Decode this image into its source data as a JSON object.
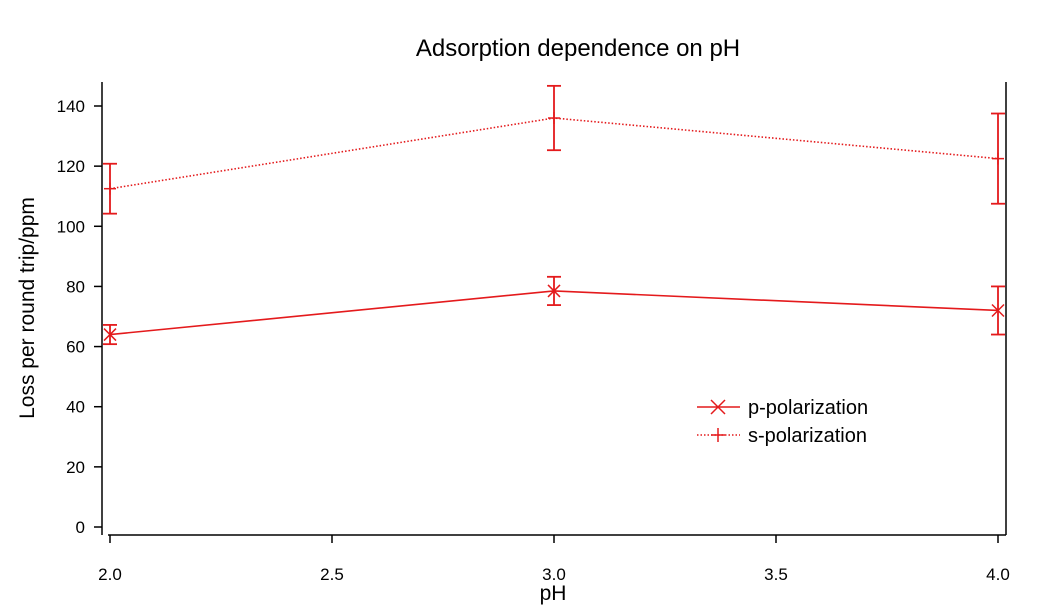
{
  "chart_data": {
    "type": "line",
    "title": "Adsorption dependence on pH",
    "xlabel": "pH",
    "ylabel": "Loss per round trip/ppm",
    "xlim": [
      2.0,
      4.0
    ],
    "ylim": [
      0,
      150
    ],
    "xticks": [
      2.0,
      2.5,
      3.0,
      3.5,
      4.0
    ],
    "xtick_labels": [
      "2.0",
      "2.5",
      "3.0",
      "3.5",
      "4.0"
    ],
    "yticks": [
      0,
      20,
      40,
      60,
      80,
      100,
      120,
      140
    ],
    "ytick_labels": [
      "0",
      "20",
      "40",
      "60",
      "80",
      "100",
      "120",
      "140"
    ],
    "grid": false,
    "legend_position": "bottom-right",
    "color": "#e41a1c",
    "series": [
      {
        "name": "p-polarization",
        "marker": "x",
        "line_style": "solid",
        "x": [
          2.0,
          3.0,
          4.0
        ],
        "y": [
          64,
          78.5,
          72
        ],
        "err": [
          3.2,
          4.7,
          8.0
        ]
      },
      {
        "name": "s-polarization",
        "marker": "plus",
        "line_style": "dotted",
        "x": [
          2.0,
          3.0,
          4.0
        ],
        "y": [
          112.5,
          136,
          122.5
        ],
        "err": [
          8.3,
          10.7,
          15.0
        ]
      }
    ]
  }
}
